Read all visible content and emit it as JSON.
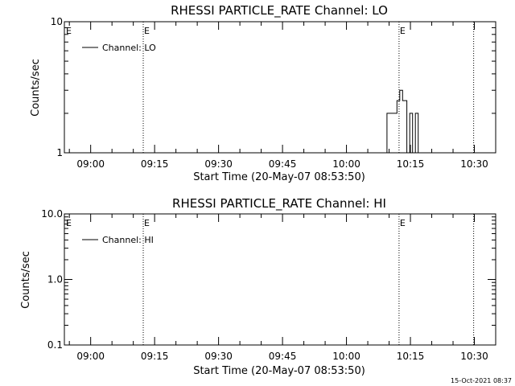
{
  "footer": "15-Oct-2021 08:37",
  "chart_data": [
    {
      "type": "line",
      "title": "RHESSI PARTICLE_RATE Channel: LO",
      "xlabel": "Start Time (20-May-07 08:53:50)",
      "ylabel": "Counts/sec",
      "y_scale": "log",
      "ylim": [
        1,
        10
      ],
      "y_ticks": [
        "1",
        "10"
      ],
      "xlim": [
        "08:53:50",
        "10:35:00"
      ],
      "x_ticks": [
        "09:00",
        "09:15",
        "09:30",
        "09:45",
        "10:00",
        "10:15",
        "10:30"
      ],
      "legend": {
        "position": "top-left",
        "entries": [
          "Channel: LO"
        ]
      },
      "markers": [
        {
          "time": "09:12:20",
          "label": "E"
        },
        {
          "time": "10:12:20",
          "label": "E"
        },
        {
          "time": "10:29:50",
          "label": ""
        }
      ],
      "series": [
        {
          "name": "Channel: LO",
          "x": [
            "08:53:50",
            "10:09:30",
            "10:09:30",
            "10:11:50",
            "10:11:50",
            "10:12:30",
            "10:12:30",
            "10:13:10",
            "10:13:10",
            "10:14:10",
            "10:14:10",
            "10:14:50",
            "10:14:50",
            "10:15:30",
            "10:15:30",
            "10:16:10",
            "10:16:10",
            "10:16:50",
            "10:16:50",
            "10:17:30",
            "10:17:30",
            "10:35:00"
          ],
          "values": [
            1,
            1,
            2,
            2,
            2.5,
            2.5,
            3,
            3,
            2.5,
            2.5,
            1,
            1,
            2,
            2,
            1,
            1,
            2,
            2,
            1,
            1,
            1,
            1
          ]
        }
      ]
    },
    {
      "type": "line",
      "title": "RHESSI PARTICLE_RATE Channel: HI",
      "xlabel": "Start Time (20-May-07 08:53:50)",
      "ylabel": "Counts/sec",
      "y_scale": "log",
      "ylim": [
        0.1,
        10
      ],
      "y_ticks": [
        "0.1",
        "1.0",
        "10.0"
      ],
      "xlim": [
        "08:53:50",
        "10:35:00"
      ],
      "x_ticks": [
        "09:00",
        "09:15",
        "09:30",
        "09:45",
        "10:00",
        "10:15",
        "10:30"
      ],
      "legend": {
        "position": "top-left",
        "entries": [
          "Channel: HI"
        ]
      },
      "markers": [
        {
          "time": "09:12:20",
          "label": "E"
        },
        {
          "time": "10:12:20",
          "label": "E"
        },
        {
          "time": "10:29:50",
          "label": ""
        }
      ],
      "series": [
        {
          "name": "Channel: HI",
          "x": [],
          "values": []
        }
      ]
    }
  ]
}
